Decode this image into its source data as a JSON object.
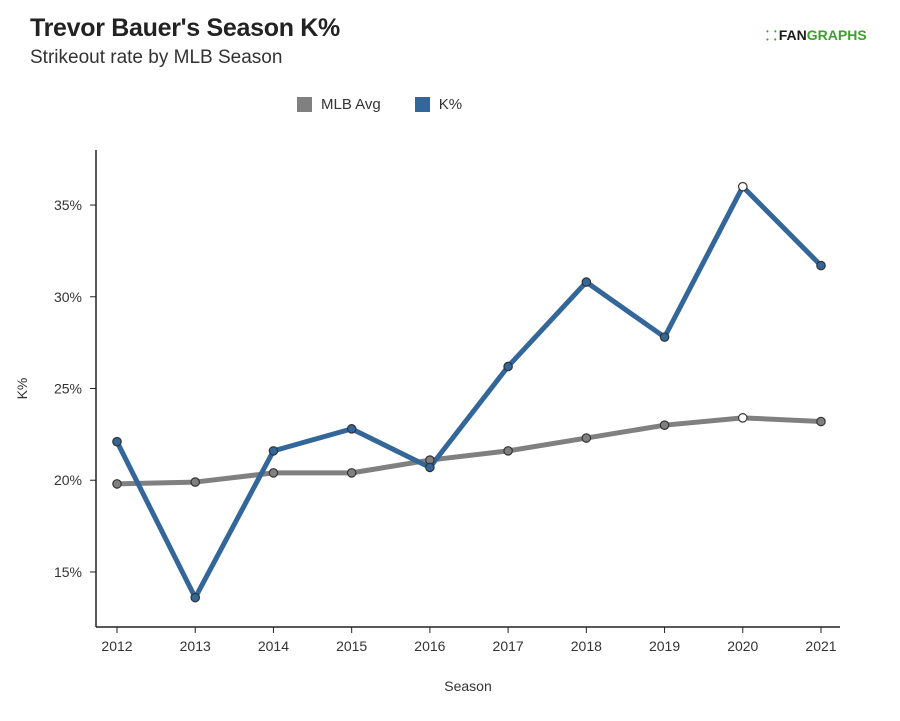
{
  "header": {
    "title": "Trevor Bauer's Season K%",
    "subtitle": "Strikeout rate by MLB Season",
    "brand_left": "FAN",
    "brand_right": "GRAPHS"
  },
  "colors": {
    "mlb_avg": "#808080",
    "k_pct": "#336699",
    "brand_green": "#3e9f2e"
  },
  "chart_data": {
    "type": "line",
    "xlabel": "Season",
    "ylabel": "K%",
    "x": [
      "2012",
      "2013",
      "2014",
      "2015",
      "2016",
      "2017",
      "2018",
      "2019",
      "2020",
      "2021"
    ],
    "ylim": [
      12,
      38
    ],
    "yticks": [
      15,
      20,
      25,
      30,
      35
    ],
    "ytick_labels": [
      "15%",
      "20%",
      "25%",
      "30%",
      "35%"
    ],
    "legend_position": "top-center",
    "grid": false,
    "series": [
      {
        "name": "MLB Avg",
        "color": "#808080",
        "values": [
          19.8,
          19.9,
          20.4,
          20.4,
          21.1,
          21.6,
          22.3,
          23.0,
          23.4,
          23.2
        ]
      },
      {
        "name": "K%",
        "color": "#336699",
        "values": [
          22.1,
          13.6,
          21.6,
          22.8,
          20.7,
          26.2,
          30.8,
          27.8,
          36.0,
          31.7
        ]
      }
    ]
  }
}
